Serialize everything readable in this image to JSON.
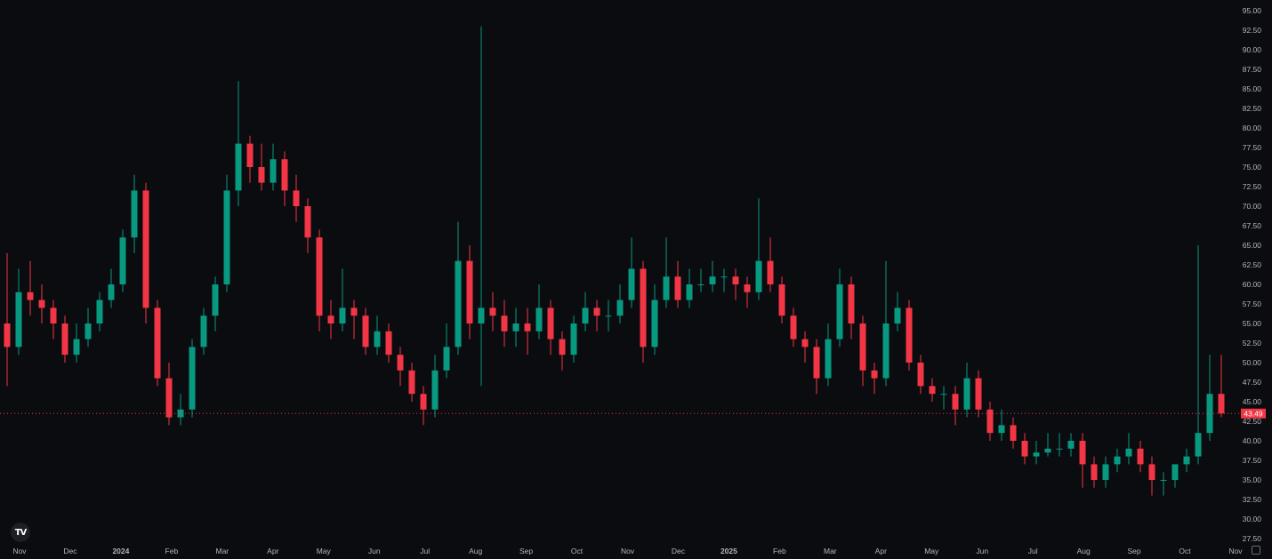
{
  "chart_data": {
    "type": "candlestick",
    "title": "",
    "xlabel": "",
    "ylabel": "",
    "ylim": [
      27.5,
      95
    ],
    "y_ticks": [
      "95.00",
      "92.50",
      "90.00",
      "87.50",
      "85.00",
      "82.50",
      "80.00",
      "77.50",
      "75.00",
      "72.50",
      "70.00",
      "67.50",
      "65.00",
      "62.50",
      "60.00",
      "57.50",
      "55.00",
      "52.50",
      "50.00",
      "47.50",
      "45.00",
      "42.50",
      "40.00",
      "37.50",
      "35.00",
      "32.50",
      "30.00",
      "27.50"
    ],
    "x_ticks": [
      "Nov",
      "Dec",
      "2024",
      "Feb",
      "Mar",
      "Apr",
      "May",
      "Jun",
      "Jul",
      "Aug",
      "Sep",
      "Oct",
      "Nov",
      "Dec",
      "2025",
      "Feb",
      "Mar",
      "Apr",
      "May",
      "Jun",
      "Jul",
      "Aug",
      "Sep",
      "Oct",
      "Nov"
    ],
    "bold_x_ticks": [
      "2024",
      "2025"
    ],
    "last_price": "43.49",
    "colors": {
      "up": "#089981",
      "down": "#f23645",
      "background": "#0b0c0f",
      "text": "#b2b5be",
      "last_price": "#f23645"
    },
    "grid": false,
    "ohlc": [
      [
        55,
        64,
        47,
        52
      ],
      [
        52,
        62,
        51,
        59
      ],
      [
        59,
        63,
        56,
        58
      ],
      [
        58,
        60,
        55,
        57
      ],
      [
        57,
        58,
        53,
        55
      ],
      [
        55,
        56,
        50,
        51
      ],
      [
        51,
        55,
        50,
        53
      ],
      [
        53,
        57,
        52,
        55
      ],
      [
        55,
        59,
        54,
        58
      ],
      [
        58,
        62,
        57,
        60
      ],
      [
        60,
        67,
        59,
        66
      ],
      [
        66,
        74,
        64,
        72
      ],
      [
        72,
        73,
        55,
        57
      ],
      [
        57,
        58,
        47,
        48
      ],
      [
        48,
        50,
        42,
        43
      ],
      [
        43,
        46,
        42,
        44
      ],
      [
        44,
        53,
        43,
        52
      ],
      [
        52,
        57,
        51,
        56
      ],
      [
        56,
        61,
        54,
        60
      ],
      [
        60,
        74,
        59,
        72
      ],
      [
        72,
        86,
        70,
        78
      ],
      [
        78,
        79,
        73,
        75
      ],
      [
        75,
        78,
        72,
        73
      ],
      [
        73,
        78,
        72,
        76
      ],
      [
        76,
        77,
        70,
        72
      ],
      [
        72,
        74,
        68,
        70
      ],
      [
        70,
        71,
        64,
        66
      ],
      [
        66,
        67,
        54,
        56
      ],
      [
        56,
        58,
        53,
        55
      ],
      [
        55,
        62,
        54,
        57
      ],
      [
        57,
        58,
        53,
        56
      ],
      [
        56,
        57,
        51,
        52
      ],
      [
        52,
        56,
        51,
        54
      ],
      [
        54,
        55,
        50,
        51
      ],
      [
        51,
        52,
        47,
        49
      ],
      [
        49,
        50,
        45,
        46
      ],
      [
        46,
        47,
        42,
        44
      ],
      [
        44,
        51,
        43,
        49
      ],
      [
        49,
        55,
        48,
        52
      ],
      [
        52,
        68,
        51,
        63
      ],
      [
        63,
        65,
        53,
        55
      ],
      [
        55,
        93,
        47,
        57
      ],
      [
        57,
        59,
        54,
        56
      ],
      [
        56,
        58,
        52,
        54
      ],
      [
        54,
        57,
        52,
        55
      ],
      [
        55,
        57,
        51,
        54
      ],
      [
        54,
        60,
        53,
        57
      ],
      [
        57,
        58,
        51,
        53
      ],
      [
        53,
        54,
        49,
        51
      ],
      [
        51,
        56,
        50,
        55
      ],
      [
        55,
        59,
        54,
        57
      ],
      [
        57,
        58,
        54,
        56
      ],
      [
        56,
        58,
        54,
        56
      ],
      [
        56,
        60,
        55,
        58
      ],
      [
        58,
        66,
        57,
        62
      ],
      [
        62,
        63,
        50,
        52
      ],
      [
        52,
        60,
        51,
        58
      ],
      [
        58,
        66,
        57,
        61
      ],
      [
        61,
        63,
        57,
        58
      ],
      [
        58,
        62,
        57,
        60
      ],
      [
        60,
        62,
        59,
        60
      ],
      [
        60,
        63,
        59,
        61
      ],
      [
        61,
        62,
        59,
        61
      ],
      [
        61,
        62,
        58,
        60
      ],
      [
        60,
        61,
        57,
        59
      ],
      [
        59,
        71,
        58,
        63
      ],
      [
        63,
        66,
        59,
        60
      ],
      [
        60,
        61,
        55,
        56
      ],
      [
        56,
        57,
        52,
        53
      ],
      [
        53,
        54,
        50,
        52
      ],
      [
        52,
        53,
        46,
        48
      ],
      [
        48,
        55,
        47,
        53
      ],
      [
        53,
        62,
        52,
        60
      ],
      [
        60,
        61,
        53,
        55
      ],
      [
        55,
        56,
        47,
        49
      ],
      [
        49,
        50,
        46,
        48
      ],
      [
        48,
        63,
        47,
        55
      ],
      [
        55,
        59,
        54,
        57
      ],
      [
        57,
        58,
        49,
        50
      ],
      [
        50,
        51,
        46,
        47
      ],
      [
        47,
        48,
        45,
        46
      ],
      [
        46,
        47,
        44,
        46
      ],
      [
        46,
        47,
        42,
        44
      ],
      [
        44,
        50,
        43,
        48
      ],
      [
        48,
        49,
        43,
        44
      ],
      [
        44,
        45,
        40,
        41
      ],
      [
        41,
        44,
        40,
        42
      ],
      [
        42,
        43,
        39,
        40
      ],
      [
        40,
        41,
        37,
        38
      ],
      [
        38,
        40,
        37,
        38.5
      ],
      [
        38.5,
        41,
        38,
        39
      ],
      [
        39,
        41,
        38,
        39
      ],
      [
        39,
        41,
        38,
        40
      ],
      [
        40,
        41,
        34,
        37
      ],
      [
        37,
        38,
        34,
        35
      ],
      [
        35,
        38,
        34,
        37
      ],
      [
        37,
        39,
        36,
        38
      ],
      [
        38,
        41,
        37,
        39
      ],
      [
        39,
        40,
        36,
        37
      ],
      [
        37,
        38,
        33,
        35
      ],
      [
        35,
        36,
        33,
        35
      ],
      [
        35,
        37,
        34,
        37
      ],
      [
        37,
        39,
        36,
        38
      ],
      [
        38,
        65,
        37,
        41
      ],
      [
        41,
        51,
        40,
        46
      ],
      [
        46,
        51,
        43,
        43.49
      ]
    ]
  },
  "branding": {
    "logo_text": "TV"
  }
}
